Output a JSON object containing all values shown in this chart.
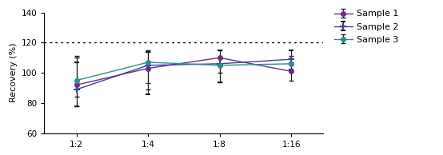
{
  "x_labels": [
    "1:2",
    "1:4",
    "1:8",
    "1:16"
  ],
  "x_values": [
    1,
    2,
    3,
    4
  ],
  "sample1": {
    "y": [
      92,
      103,
      110,
      101
    ],
    "yerr_low": [
      8,
      14,
      16,
      6
    ],
    "yerr_high": [
      18,
      12,
      5,
      6
    ],
    "color": "#6B2D8B",
    "marker": "o"
  },
  "sample2": {
    "y": [
      89,
      105,
      106,
      109
    ],
    "yerr_low": [
      11,
      19,
      12,
      7
    ],
    "yerr_high": [
      18,
      9,
      9,
      6
    ],
    "color": "#3B3F9E",
    "marker": "+"
  },
  "sample3": {
    "y": [
      95,
      107,
      105,
      106
    ],
    "yerr_low": [
      17,
      14,
      5,
      5
    ],
    "yerr_high": [
      16,
      7,
      5,
      5
    ],
    "color": "#2E8B8B",
    "marker": "o"
  },
  "ecolor": "#1a1a1a",
  "ylabel": "Recovery (%)",
  "ylim": [
    60,
    140
  ],
  "yticks": [
    60,
    80,
    100,
    120,
    140
  ],
  "hline_y": 120,
  "legend_labels": [
    "Sample 1",
    "Sample 2",
    "Sample 3"
  ],
  "background_color": "#ffffff"
}
